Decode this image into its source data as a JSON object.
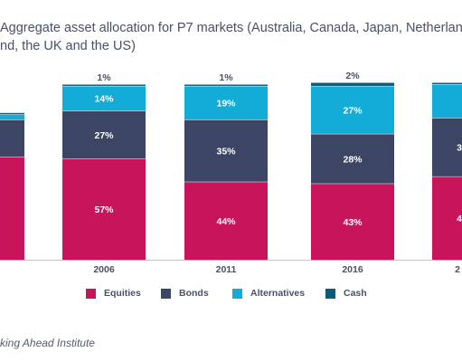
{
  "title_lines": [
    "Aggregate asset allocation for P7 markets (Australia, Canada, Japan, Netherlands",
    "nd, the UK and the US)"
  ],
  "source": "king Ahead Institute",
  "chart_data": {
    "type": "bar",
    "stacked": true,
    "percent_stacked": true,
    "title": "Aggregate asset allocation for P7 markets (Australia, Canada, Japan, Netherlands",
    "categories": [
      "2006",
      "2011",
      "2016"
    ],
    "series": [
      {
        "name": "Equities",
        "color": "#c8145a",
        "values": [
          57,
          44,
          43
        ],
        "labels": [
          "57%",
          "44%",
          "43%"
        ]
      },
      {
        "name": "Bonds",
        "color": "#3c4563",
        "values": [
          27,
          35,
          28
        ],
        "labels": [
          "27%",
          "35%",
          "28%"
        ]
      },
      {
        "name": "Alternatives",
        "color": "#12acd6",
        "values": [
          14,
          19,
          27
        ],
        "labels": [
          "14%",
          "19%",
          "27%"
        ]
      },
      {
        "name": "Cash",
        "color": "#0b5c78",
        "values": [
          1,
          1,
          2
        ],
        "labels": [
          "1%",
          "1%",
          "2%"
        ]
      }
    ],
    "partial_bars": {
      "left": {
        "values": [
          58,
          21,
          3,
          1
        ]
      },
      "right": {
        "values": [
          47,
          33,
          19,
          1
        ],
        "bonds_label": "3",
        "equities_label": "4"
      }
    },
    "ylim": [
      0,
      100
    ],
    "grid": false,
    "legend": "bottom"
  }
}
